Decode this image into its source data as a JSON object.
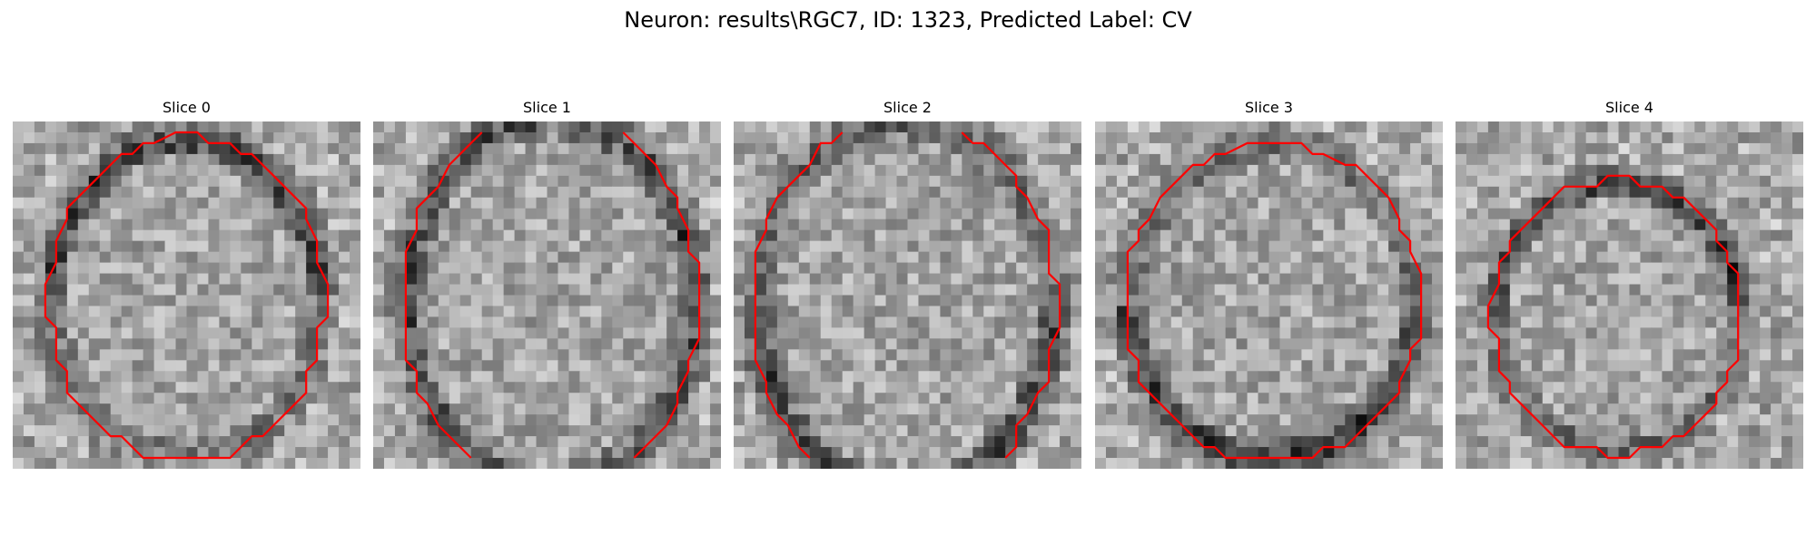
{
  "figure": {
    "title": "Neuron: results\\RGC7, ID: 1323, Predicted Label: CV"
  },
  "slices": [
    {
      "title": "Slice 0"
    },
    {
      "title": "Slice 1"
    },
    {
      "title": "Slice 2"
    },
    {
      "title": "Slice 3"
    },
    {
      "title": "Slice 4"
    }
  ],
  "colors": {
    "contour": "#ff0000",
    "colormap": "grayscale"
  }
}
